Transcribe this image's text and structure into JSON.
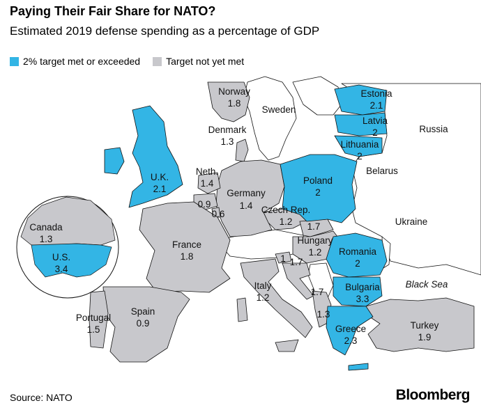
{
  "title": "Paying Their Fair Share for NATO?",
  "subtitle": "Estimated 2019 defense spending as a percentage of GDP",
  "legend": [
    {
      "label": "2% target met or exceeded",
      "color": "#33b5e5"
    },
    {
      "label": "Target not yet met",
      "color": "#c8c8cc"
    }
  ],
  "colors": {
    "met": "#33b5e5",
    "not_met": "#c8c8cc",
    "non_nato": "#ffffff",
    "border": "#111111"
  },
  "countries": {
    "norway": {
      "name": "Norway",
      "value": "1.8"
    },
    "denmark": {
      "name": "Denmark",
      "value": "1.3"
    },
    "estonia": {
      "name": "Estonia",
      "value": "2.1"
    },
    "latvia": {
      "name": "Latvia",
      "value": "2"
    },
    "lithuania": {
      "name": "Lithuania",
      "value": "2"
    },
    "uk": {
      "name": "U.K.",
      "value": "2.1"
    },
    "netherlands": {
      "name": "Neth.",
      "value": "1.4"
    },
    "belgium": {
      "value": "0.9"
    },
    "luxembourg": {
      "value": "0.6"
    },
    "germany": {
      "name": "Germany",
      "value": "1.4"
    },
    "poland": {
      "name": "Poland",
      "value": "2"
    },
    "czech": {
      "name": "Czech Rep.",
      "value": "1.2"
    },
    "slovakia": {
      "value": "1.7"
    },
    "hungary": {
      "name": "Hungary",
      "value": "1.2"
    },
    "france": {
      "name": "France",
      "value": "1.8"
    },
    "slovenia": {
      "value": "1"
    },
    "croatia": {
      "value": "1.7"
    },
    "romania": {
      "name": "Romania",
      "value": "2"
    },
    "bulgaria": {
      "name": "Bulgaria",
      "value": "3.3"
    },
    "italy": {
      "name": "Italy",
      "value": "1.2"
    },
    "montenegro": {
      "value": "1.7"
    },
    "albania": {
      "value": "1.3"
    },
    "greece": {
      "name": "Greece",
      "value": "2.3"
    },
    "turkey": {
      "name": "Turkey",
      "value": "1.9"
    },
    "portugal": {
      "name": "Portugal",
      "value": "1.5"
    },
    "spain": {
      "name": "Spain",
      "value": "0.9"
    },
    "canada": {
      "name": "Canada",
      "value": "1.3"
    },
    "us": {
      "name": "U.S.",
      "value": "3.4"
    }
  },
  "non_nato_labels": {
    "sweden": "Sweden",
    "russia": "Russia",
    "belarus": "Belarus",
    "ukraine": "Ukraine",
    "black_sea": "Black Sea"
  },
  "source": "Source: NATO",
  "brand": "Bloomberg"
}
